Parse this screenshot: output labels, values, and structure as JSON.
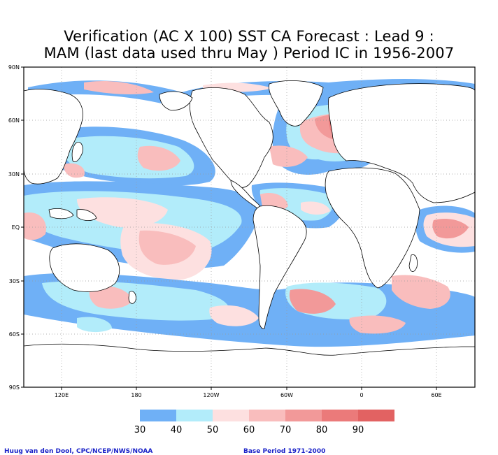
{
  "title_line1": "Verification (AC X 100) SST CA Forecast : Lead 9 :",
  "title_line2": "MAM (last data used thru May ) Period IC in 1956-2007",
  "lat_labels": [
    "90N",
    "60N",
    "30N",
    "EQ",
    "30S",
    "60S",
    "90S"
  ],
  "lon_labels": [
    "120E",
    "180",
    "120W",
    "60W",
    "0",
    "60E"
  ],
  "colorbar": {
    "levels": [
      "30",
      "40",
      "50",
      "60",
      "70",
      "80",
      "90"
    ],
    "colors": [
      "#6fb0f6",
      "#b2ecfa",
      "#fde0e0",
      "#f9bdbd",
      "#f29999",
      "#eb7a7a",
      "#e26262"
    ]
  },
  "credit_left": "Huug van den Dool, CPC/NCEP/NWS/NOAA",
  "credit_right": "Base Period 1971-2000"
}
